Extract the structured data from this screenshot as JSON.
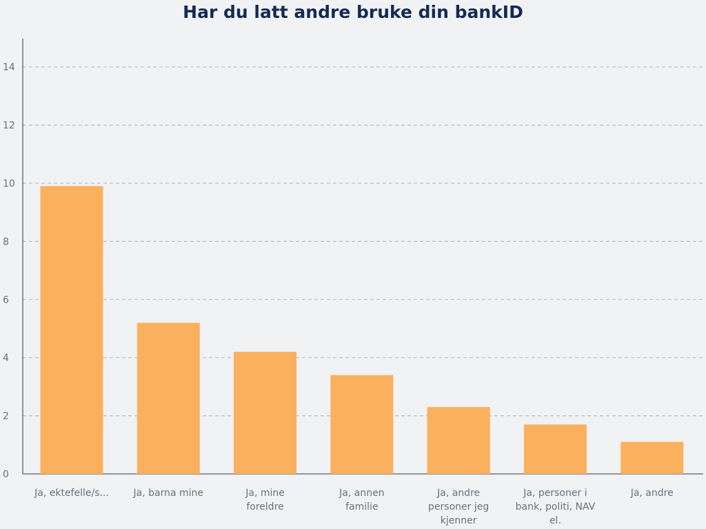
{
  "chart_data": {
    "type": "bar",
    "title": "Har du latt andre bruke din bankID",
    "categories": [
      [
        "Ja, ektefelle/s..."
      ],
      [
        "Ja, barna mine"
      ],
      [
        "Ja, mine",
        "foreldre"
      ],
      [
        "Ja, annen",
        "familie"
      ],
      [
        "Ja, andre",
        "personer jeg",
        "kjenner"
      ],
      [
        "Ja, personer i",
        "bank, politi, NAV",
        "el."
      ],
      [
        "Ja, andre"
      ]
    ],
    "values": [
      9.9,
      5.2,
      4.2,
      3.4,
      2.3,
      1.7,
      1.1
    ],
    "ylim": [
      0,
      15
    ],
    "yticks": [
      0,
      2,
      4,
      6,
      8,
      10,
      12,
      14
    ],
    "grid": true,
    "xlabel": "",
    "ylabel": ""
  },
  "colors": {
    "bar": "#fbb05d",
    "grid": "#b9bcc2",
    "axis": "#5b5f66",
    "title": "#132b55"
  }
}
